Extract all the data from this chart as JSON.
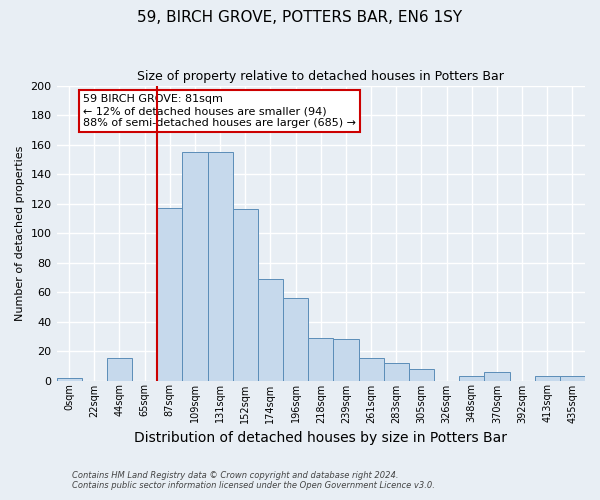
{
  "title": "59, BIRCH GROVE, POTTERS BAR, EN6 1SY",
  "subtitle": "Size of property relative to detached houses in Potters Bar",
  "xlabel": "Distribution of detached houses by size in Potters Bar",
  "ylabel": "Number of detached properties",
  "bin_labels": [
    "0sqm",
    "22sqm",
    "44sqm",
    "65sqm",
    "87sqm",
    "109sqm",
    "131sqm",
    "152sqm",
    "174sqm",
    "196sqm",
    "218sqm",
    "239sqm",
    "261sqm",
    "283sqm",
    "305sqm",
    "326sqm",
    "348sqm",
    "370sqm",
    "392sqm",
    "413sqm",
    "435sqm"
  ],
  "bar_heights": [
    2,
    0,
    15,
    0,
    117,
    155,
    155,
    116,
    69,
    56,
    29,
    28,
    15,
    12,
    8,
    0,
    3,
    6,
    0,
    3,
    3
  ],
  "bar_color": "#c6d9ec",
  "bar_edge_color": "#5b8db8",
  "vline_x_index": 4,
  "vline_color": "#cc0000",
  "annotation_line1": "59 BIRCH GROVE: 81sqm",
  "annotation_line2": "← 12% of detached houses are smaller (94)",
  "annotation_line3": "88% of semi-detached houses are larger (685) →",
  "annotation_box_color": "#ffffff",
  "annotation_box_edge": "#cc0000",
  "ylim": [
    0,
    200
  ],
  "yticks": [
    0,
    20,
    40,
    60,
    80,
    100,
    120,
    140,
    160,
    180,
    200
  ],
  "footer1": "Contains HM Land Registry data © Crown copyright and database right 2024.",
  "footer2": "Contains public sector information licensed under the Open Government Licence v3.0.",
  "bg_color": "#e8eef4",
  "plot_bg_color": "#e8eef4",
  "grid_color": "#ffffff"
}
